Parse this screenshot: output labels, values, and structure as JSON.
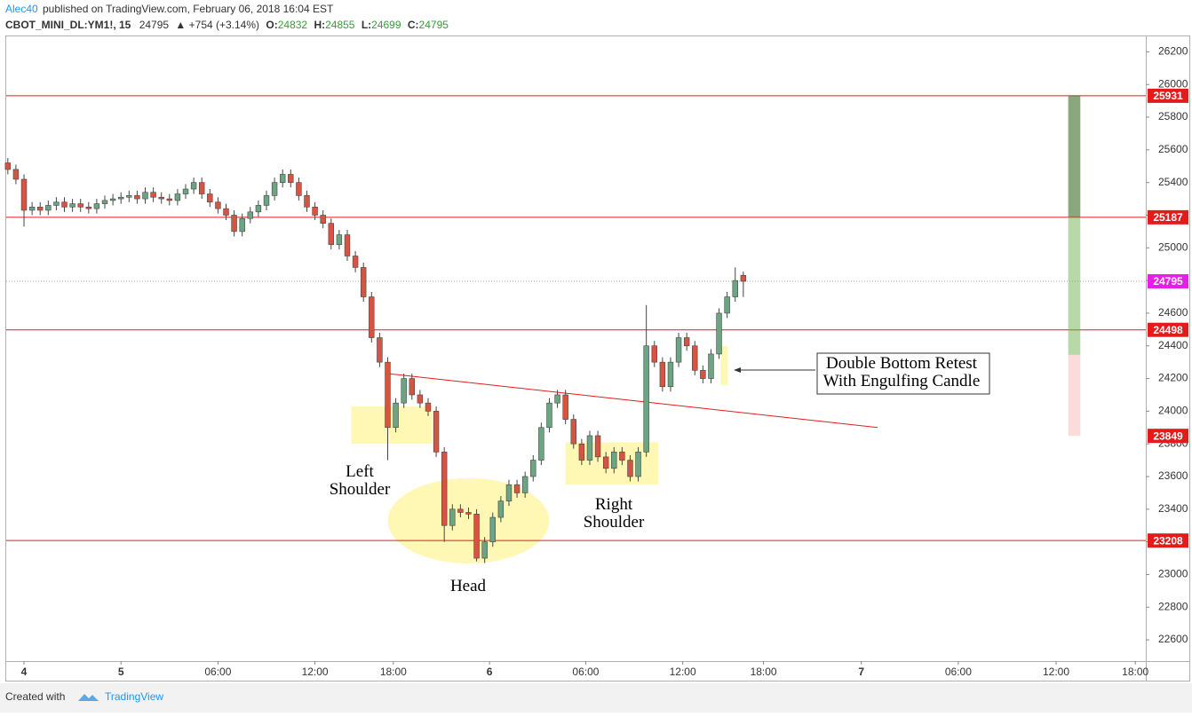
{
  "header": {
    "author": "Alec40",
    "published": "published on TradingView.com, February 06, 2018 16:04 EST",
    "symbol": "CBOT_MINI_DL:YM1!, 15",
    "last": "24795",
    "change": "▲ +754 (+3.14%)",
    "o_label": "O:",
    "o": "24832",
    "h_label": "H:",
    "h": "24855",
    "l_label": "L:",
    "l": "24699",
    "c_label": "C:",
    "c": "24795"
  },
  "footer": {
    "created": "Created with",
    "brand": "TradingView"
  },
  "chart_data": {
    "type": "candlestick",
    "up_color": "#6ba583",
    "down_color": "#d75442",
    "open": [
      25520,
      25480,
      25420,
      25230,
      25250,
      25230,
      25260,
      25280,
      25250,
      25270,
      25250,
      25240,
      25270,
      25290,
      25300,
      25310,
      25320,
      25300,
      25340,
      25310,
      25300,
      25290,
      25330,
      25360,
      25400,
      25330,
      25280,
      25240,
      25200,
      25100,
      25180,
      25220,
      25260,
      25320,
      25400,
      25450,
      25400,
      25320,
      25250,
      25200,
      25150,
      25020,
      25080,
      24950,
      24880,
      24700,
      24450,
      24300,
      23900,
      24050,
      24200,
      24100,
      24050,
      24000,
      23750,
      23300,
      23400,
      23380,
      23370,
      23100,
      23200,
      23350,
      23450,
      23550,
      23500,
      23600,
      23700,
      23900,
      24050,
      24100,
      23950,
      23800,
      23700,
      23850,
      23720,
      23650,
      23750,
      23700,
      23600,
      23750,
      24400,
      24300,
      24150,
      24300,
      24450,
      24400,
      24250,
      24200,
      24350,
      24600,
      24700,
      24832
    ],
    "high": [
      25550,
      25510,
      25450,
      25280,
      25280,
      25290,
      25310,
      25310,
      25300,
      25300,
      25280,
      25300,
      25320,
      25330,
      25340,
      25350,
      25350,
      25370,
      25370,
      25340,
      25330,
      25360,
      25390,
      25430,
      25430,
      25360,
      25310,
      25270,
      25230,
      25210,
      25250,
      25290,
      25350,
      25430,
      25480,
      25480,
      25430,
      25350,
      25280,
      25230,
      25180,
      25110,
      25110,
      24980,
      24910,
      24730,
      24480,
      24330,
      24080,
      24230,
      24230,
      24130,
      24080,
      24030,
      23780,
      23430,
      23430,
      23410,
      23400,
      23230,
      23380,
      23480,
      23580,
      23580,
      23630,
      23730,
      23930,
      24080,
      24130,
      24130,
      23980,
      23830,
      23880,
      23880,
      23750,
      23780,
      23780,
      23730,
      23780,
      24650,
      24430,
      24330,
      24330,
      24480,
      24480,
      24430,
      24280,
      24380,
      24630,
      24730,
      24880,
      24855
    ],
    "low": [
      25450,
      25390,
      25130,
      25200,
      25200,
      25200,
      25230,
      25220,
      25220,
      25220,
      25210,
      25210,
      25240,
      25260,
      25270,
      25280,
      25270,
      25270,
      25280,
      25270,
      25260,
      25260,
      25300,
      25330,
      25300,
      25250,
      25210,
      25170,
      25070,
      25070,
      25150,
      25190,
      25230,
      25290,
      25370,
      25370,
      25290,
      25220,
      25170,
      25120,
      24990,
      24990,
      24920,
      24850,
      24670,
      24420,
      24270,
      23700,
      23870,
      24020,
      24070,
      24020,
      23970,
      23720,
      23200,
      23270,
      23350,
      23340,
      23080,
      23070,
      23170,
      23320,
      23420,
      23470,
      23470,
      23570,
      23670,
      23870,
      24020,
      23920,
      23770,
      23670,
      23670,
      23690,
      23620,
      23620,
      23670,
      23570,
      23570,
      23720,
      24270,
      24120,
      24120,
      24270,
      24370,
      24220,
      24170,
      24170,
      24320,
      24570,
      24670,
      24699
    ],
    "close": [
      25480,
      25420,
      25230,
      25250,
      25230,
      25260,
      25280,
      25250,
      25270,
      25250,
      25240,
      25270,
      25290,
      25300,
      25310,
      25320,
      25300,
      25340,
      25310,
      25300,
      25290,
      25330,
      25360,
      25400,
      25330,
      25280,
      25240,
      25200,
      25100,
      25180,
      25220,
      25260,
      25320,
      25400,
      25450,
      25400,
      25320,
      25250,
      25200,
      25150,
      25020,
      25080,
      24950,
      24880,
      24700,
      24450,
      24300,
      23900,
      24050,
      24200,
      24100,
      24050,
      24000,
      23750,
      23300,
      23400,
      23380,
      23370,
      23100,
      23200,
      23350,
      23450,
      23550,
      23500,
      23600,
      23700,
      23900,
      24050,
      24100,
      23950,
      23800,
      23700,
      23850,
      23720,
      23650,
      23750,
      23700,
      23600,
      23750,
      24400,
      24300,
      24150,
      24300,
      24450,
      24400,
      24250,
      24200,
      24350,
      24600,
      24700,
      24800,
      24795
    ],
    "xlim": [
      -0.2,
      140.8
    ],
    "xticks": [
      {
        "value": 2,
        "label": "4"
      },
      {
        "value": 14,
        "label": "5"
      },
      {
        "value": 26,
        "label": "06:00"
      },
      {
        "value": 38,
        "label": "12:00"
      },
      {
        "value": 47.7,
        "label": "18:00"
      },
      {
        "value": 59.6,
        "label": "6"
      },
      {
        "value": 71.5,
        "label": "06:00"
      },
      {
        "value": 83.5,
        "label": "12:00"
      },
      {
        "value": 93.5,
        "label": "18:00"
      },
      {
        "value": 105.6,
        "label": "7"
      },
      {
        "value": 117.6,
        "label": "06:00"
      },
      {
        "value": 129.7,
        "label": "12:00"
      },
      {
        "value": 139.5,
        "label": "18:00"
      }
    ],
    "ylim": [
      22470,
      26300
    ],
    "yticks": [
      22600,
      22800,
      23000,
      23200,
      23400,
      23600,
      23800,
      24000,
      24200,
      24400,
      24600,
      24800,
      25000,
      25200,
      25400,
      25600,
      25800,
      26000,
      26200
    ],
    "hlines": {
      "color": "#e31b1b",
      "values": [
        25931,
        25187,
        24498,
        23208
      ]
    },
    "last_price": {
      "value": 24795,
      "color": "#e61ee6"
    },
    "position": {
      "x": [
        131.2,
        132.7
      ],
      "levels": [
        25931,
        25187,
        24345,
        23849
      ]
    },
    "trendline": {
      "x": [
        47,
        107.6
      ],
      "y": [
        24230,
        23900
      ],
      "color": "#e31b1b"
    },
    "zones": [
      {
        "x": [
          42.5,
          52.5
        ],
        "y": [
          24030,
          23800
        ]
      },
      {
        "x": [
          69,
          80.5
        ],
        "y": [
          23810,
          23550
        ]
      },
      {
        "x": [
          88.2,
          89.1
        ],
        "y": [
          24400,
          24160
        ]
      }
    ],
    "head_zone": {
      "x": 57,
      "y": 23329,
      "rx": 10,
      "ry": 261
    },
    "annotations": [
      {
        "lines": [
          "Left",
          "Shoulder"
        ]
      },
      {
        "lines": [
          "Head"
        ]
      },
      {
        "lines": [
          "Right",
          "Shoulder"
        ]
      },
      {
        "lines": [
          "Double Bottom Retest",
          "With Engulfing Candle"
        ]
      }
    ]
  }
}
